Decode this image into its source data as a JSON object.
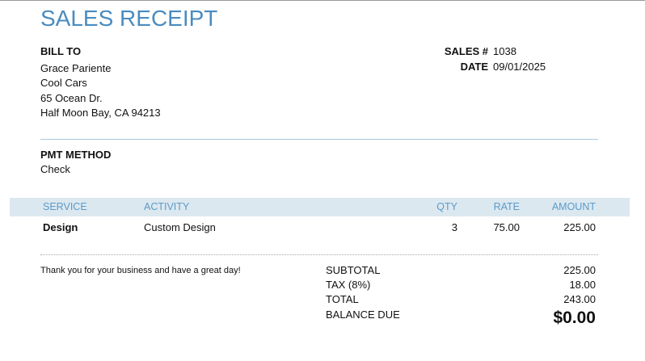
{
  "header": {
    "title": "SALES RECEIPT"
  },
  "bill_to": {
    "label": "BILL TO",
    "lines": [
      "Grace Pariente",
      "Cool Cars",
      "65 Ocean Dr.",
      "Half Moon Bay, CA  94213"
    ]
  },
  "meta": {
    "sales_no_label": "SALES #",
    "sales_no": "1038",
    "date_label": "DATE",
    "date": "09/01/2025"
  },
  "payment": {
    "label": "PMT METHOD",
    "value": "Check"
  },
  "table": {
    "columns": [
      "SERVICE",
      "ACTIVITY",
      "QTY",
      "RATE",
      "AMOUNT"
    ],
    "rows": [
      [
        "Design",
        "Custom Design",
        "3",
        "75.00",
        "225.00"
      ]
    ]
  },
  "note": "Thank you for your business and have a great day!",
  "totals": {
    "rows": [
      [
        "SUBTOTAL",
        "225.00"
      ],
      [
        "TAX (8%)",
        "18.00"
      ],
      [
        "TOTAL",
        "243.00"
      ]
    ],
    "balance_label": "BALANCE DUE",
    "balance": "$0.00"
  }
}
